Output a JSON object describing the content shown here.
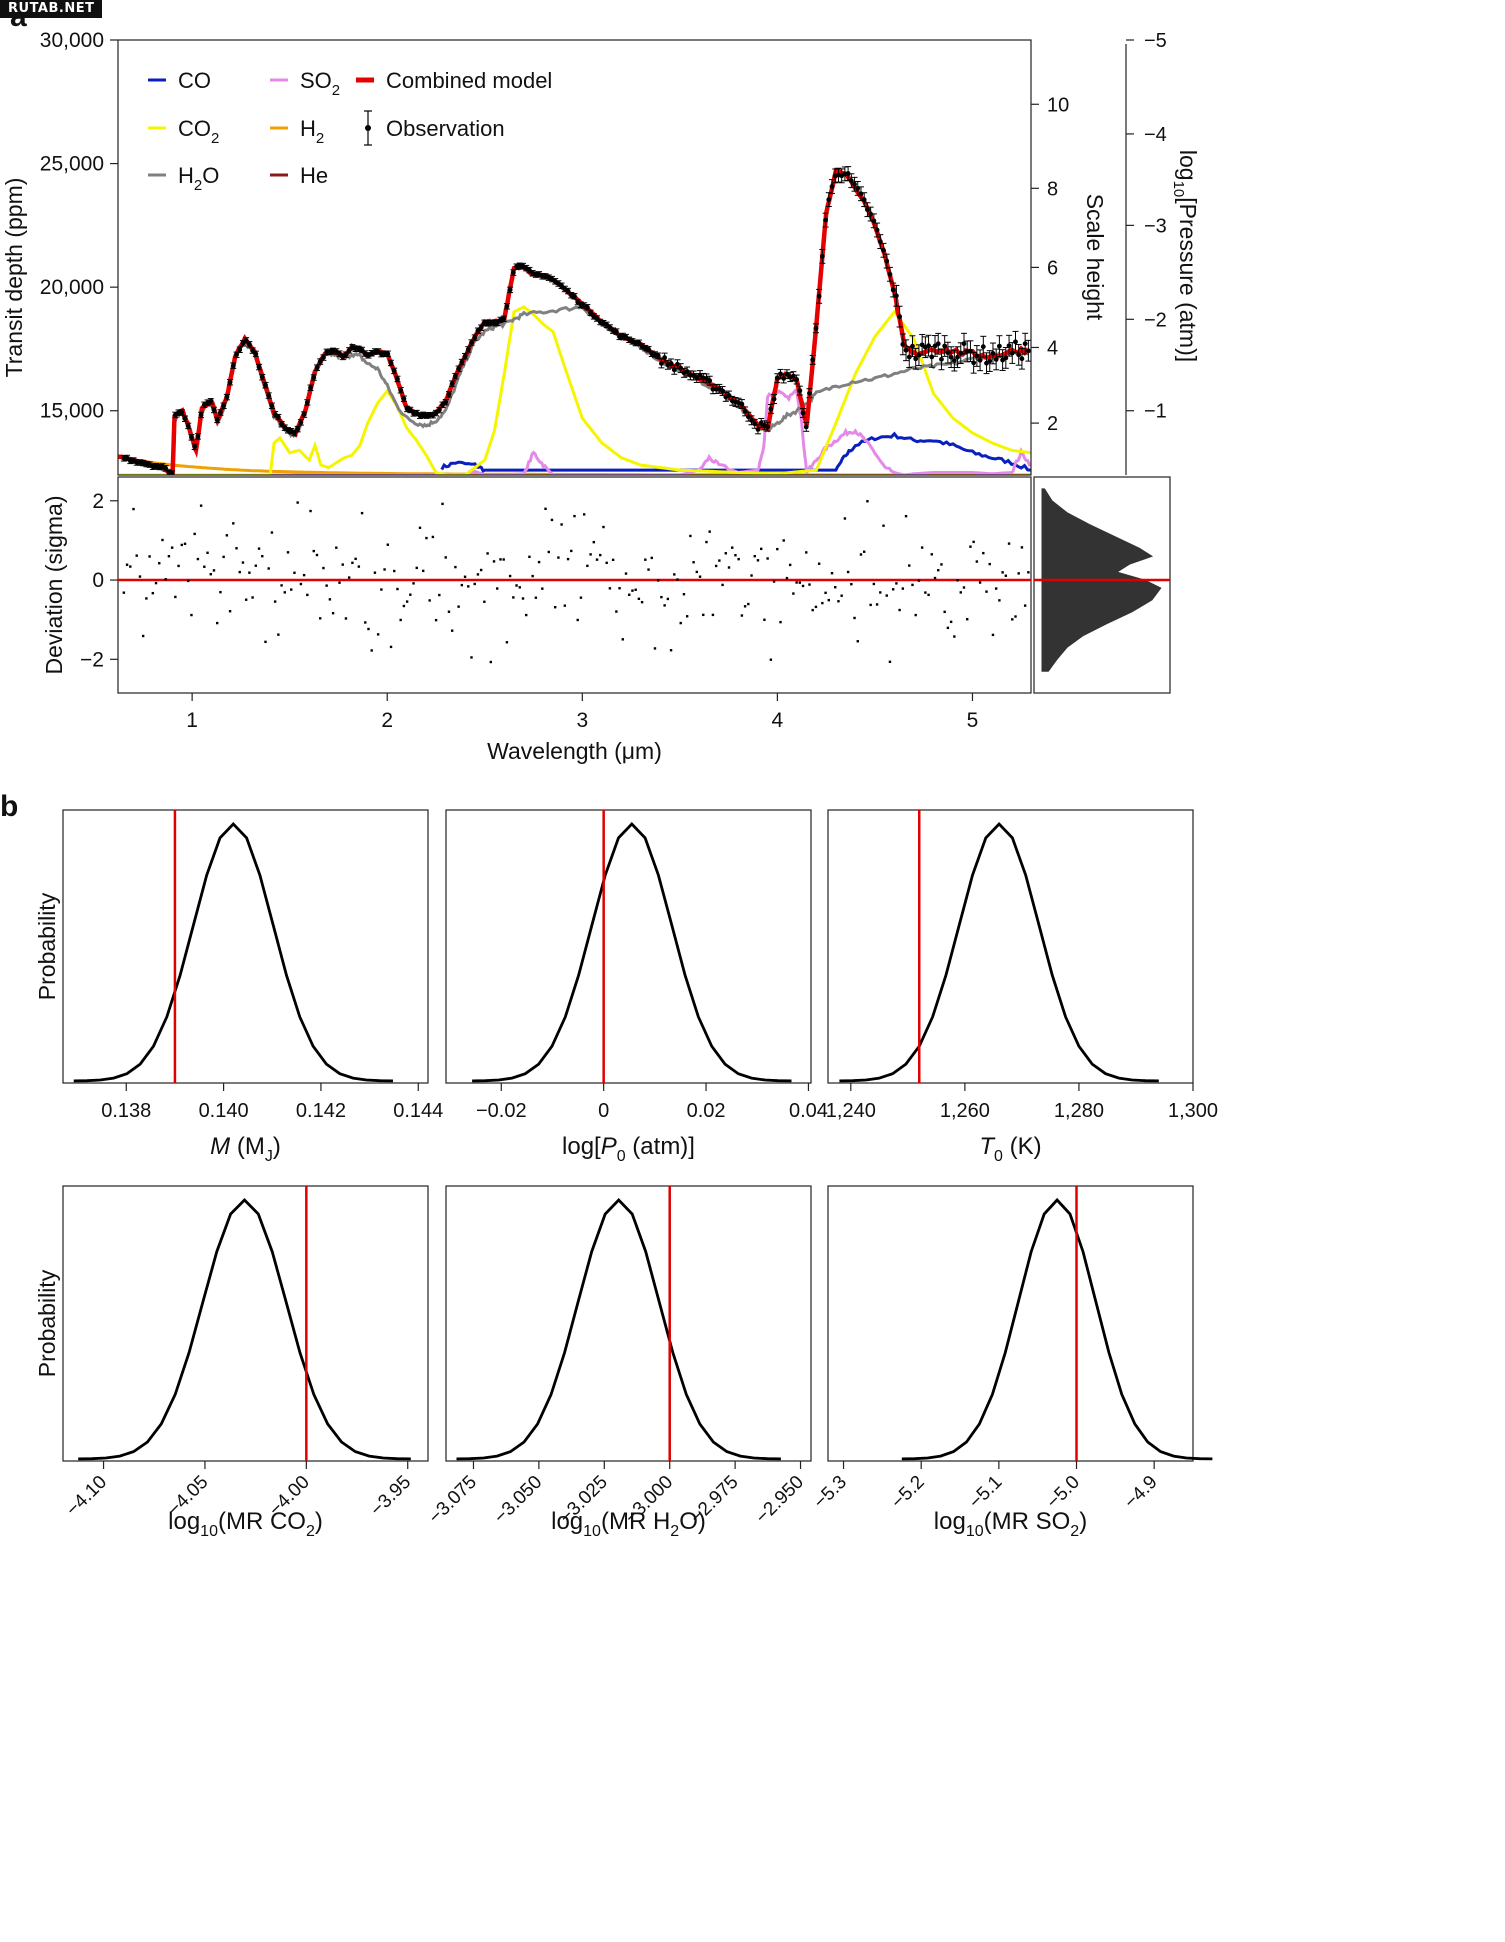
{
  "watermark": "RUTAB.NET",
  "colors": {
    "CO": "#0a1fbf",
    "CO2": "#f5f500",
    "H2O": "#808080",
    "SO2": "#e589e8",
    "H2": "#f0a000",
    "He": "#8b1a1a",
    "combined": "#e60000",
    "observation": "#000000",
    "vline": "#e00000",
    "hist": "#333333"
  },
  "chart_data": [
    {
      "panel": "a",
      "type": "line",
      "xlabel": "Wavelength (μm)",
      "ylabel": "Transit depth (ppm)",
      "right_label_1": "Scale height",
      "right_label_2": "log10[Pressure (atm)]",
      "xlim": [
        0.62,
        5.3
      ],
      "ylim": [
        12400,
        30000
      ],
      "x_ticks": [
        1,
        2,
        3,
        4,
        5
      ],
      "y_ticks": [
        {
          "v": 15000,
          "t": "15,000"
        },
        {
          "v": 20000,
          "t": "20,000"
        },
        {
          "v": 25000,
          "t": "25,000"
        },
        {
          "v": 30000,
          "t": "30,000"
        }
      ],
      "scale_height_ticks": [
        {
          "v": 2,
          "d": 14500
        },
        {
          "v": 4,
          "d": 17560
        },
        {
          "v": 6,
          "d": 20800
        },
        {
          "v": 8,
          "d": 24000
        },
        {
          "v": 10,
          "d": 27400
        }
      ],
      "pressure_ticks": [
        {
          "t": "−1",
          "d": 15000
        },
        {
          "t": "−2",
          "d": 18700
        },
        {
          "t": "−3",
          "d": 22500
        },
        {
          "t": "−4",
          "d": 26200
        },
        {
          "t": "−5",
          "d": 30000
        }
      ],
      "legend": [
        {
          "key": "CO",
          "label": "CO",
          "sub": ""
        },
        {
          "key": "SO2",
          "label": "SO",
          "sub": "2"
        },
        {
          "key": "combined",
          "label": "Combined model",
          "sub": ""
        },
        {
          "key": "CO2",
          "label": "CO",
          "sub": "2"
        },
        {
          "key": "H2",
          "label": "H",
          "sub": "2"
        },
        {
          "key": "observation",
          "label": "Observation",
          "sub": ""
        },
        {
          "key": "H2O",
          "label": "H",
          "sub": "2",
          "tail": "O"
        },
        {
          "key": "He",
          "label": "He",
          "sub": ""
        }
      ],
      "series": [
        {
          "name": "Combined model",
          "key": "combined",
          "x": [
            0.62,
            0.75,
            0.85,
            0.9,
            0.91,
            0.95,
            0.98,
            1.02,
            1.05,
            1.1,
            1.13,
            1.18,
            1.22,
            1.27,
            1.32,
            1.38,
            1.42,
            1.48,
            1.53,
            1.58,
            1.63,
            1.68,
            1.72,
            1.78,
            1.82,
            1.86,
            1.9,
            1.95,
            2.0,
            2.05,
            2.1,
            2.15,
            2.2,
            2.25,
            2.3,
            2.35,
            2.4,
            2.45,
            2.5,
            2.55,
            2.6,
            2.65,
            2.7,
            2.75,
            2.8,
            2.85,
            2.9,
            3.0,
            3.1,
            3.2,
            3.3,
            3.4,
            3.5,
            3.6,
            3.7,
            3.8,
            3.85,
            3.9,
            3.95,
            4.0,
            4.05,
            4.1,
            4.15,
            4.2,
            4.25,
            4.3,
            4.35,
            4.4,
            4.45,
            4.5,
            4.55,
            4.6,
            4.65,
            4.7,
            4.8,
            4.9,
            5.0,
            5.1,
            5.2,
            5.3
          ],
          "y": [
            13150,
            12900,
            12700,
            12450,
            14800,
            15000,
            14400,
            13400,
            15100,
            15400,
            14600,
            15600,
            17200,
            17900,
            17400,
            15900,
            14900,
            14300,
            14100,
            15000,
            16600,
            17300,
            17400,
            17200,
            17600,
            17500,
            17200,
            17400,
            17300,
            16300,
            15100,
            14900,
            14800,
            14900,
            15400,
            16400,
            17200,
            18000,
            18600,
            18600,
            18700,
            20800,
            20800,
            20500,
            20500,
            20300,
            20000,
            19300,
            18600,
            18000,
            17700,
            17100,
            16700,
            16300,
            15900,
            15300,
            14900,
            14400,
            14300,
            16300,
            16500,
            16200,
            14400,
            18500,
            23000,
            24700,
            24600,
            24000,
            23400,
            22500,
            21300,
            19800,
            17600,
            17300,
            17500,
            17400,
            17300,
            17200,
            17400,
            17500
          ]
        },
        {
          "name": "H2O",
          "key": "H2O",
          "x": [
            0.62,
            0.75,
            0.85,
            0.9,
            0.91,
            0.95,
            0.98,
            1.02,
            1.05,
            1.1,
            1.13,
            1.18,
            1.22,
            1.27,
            1.32,
            1.38,
            1.42,
            1.48,
            1.53,
            1.58,
            1.63,
            1.68,
            1.72,
            1.78,
            1.82,
            1.86,
            1.9,
            1.95,
            2.0,
            2.05,
            2.1,
            2.15,
            2.2,
            2.25,
            2.3,
            2.35,
            2.4,
            2.45,
            2.5,
            2.55,
            2.6,
            2.65,
            2.7,
            2.8,
            2.9,
            3.0,
            3.1,
            3.2,
            3.3,
            3.4,
            3.5,
            3.6,
            3.7,
            3.8,
            3.85,
            3.9,
            3.95,
            4.0,
            4.05,
            4.1,
            4.15,
            4.2,
            4.3,
            4.4,
            4.5,
            4.6,
            4.7,
            4.8,
            4.9,
            5.0,
            5.1,
            5.2,
            5.3
          ],
          "y": [
            13100,
            12900,
            12600,
            12450,
            14700,
            14900,
            14300,
            13300,
            15000,
            15300,
            14500,
            15500,
            17100,
            17800,
            17300,
            15800,
            14800,
            14200,
            14000,
            14900,
            16500,
            17200,
            17300,
            17100,
            17300,
            17200,
            16900,
            16700,
            16000,
            15200,
            14700,
            14500,
            14400,
            14600,
            15000,
            16000,
            17000,
            17800,
            18200,
            18400,
            18500,
            18700,
            18900,
            19000,
            19100,
            19200,
            18500,
            17900,
            17600,
            17000,
            16600,
            16200,
            15800,
            15200,
            14800,
            14400,
            14200,
            14500,
            14800,
            15000,
            15300,
            15700,
            16000,
            16200,
            16300,
            16500,
            16700,
            16800,
            16900,
            17100,
            17200,
            17300,
            17400
          ]
        },
        {
          "name": "CO2",
          "key": "CO2",
          "x": [
            0.62,
            1.4,
            1.42,
            1.45,
            1.5,
            1.55,
            1.6,
            1.63,
            1.66,
            1.7,
            1.74,
            1.78,
            1.82,
            1.86,
            1.9,
            1.95,
            2.0,
            2.05,
            2.1,
            2.15,
            2.2,
            2.25,
            2.3,
            2.4,
            2.5,
            2.55,
            2.6,
            2.65,
            2.7,
            2.75,
            2.8,
            2.85,
            2.9,
            3.0,
            3.1,
            3.2,
            3.3,
            3.5,
            3.8,
            4.0,
            4.2,
            4.3,
            4.4,
            4.5,
            4.6,
            4.7,
            4.8,
            4.9,
            5.0,
            5.1,
            5.2,
            5.3
          ],
          "y": [
            12400,
            12400,
            13700,
            13900,
            13300,
            13400,
            13000,
            13600,
            12800,
            12700,
            12900,
            13100,
            13200,
            13600,
            14500,
            15300,
            15800,
            15200,
            14300,
            13800,
            13200,
            12500,
            12400,
            12400,
            13000,
            14200,
            16500,
            19000,
            19200,
            18900,
            18500,
            18200,
            17000,
            14700,
            13700,
            13100,
            12800,
            12600,
            12500,
            12450,
            12600,
            14500,
            16500,
            18000,
            19000,
            17900,
            15700,
            14700,
            14100,
            13700,
            13400,
            13300
          ]
        },
        {
          "name": "SO2",
          "key": "SO2",
          "x": [
            0.62,
            2.4,
            2.45,
            2.5,
            2.55,
            2.7,
            2.75,
            2.8,
            2.85,
            3.0,
            3.5,
            3.6,
            3.65,
            3.7,
            3.8,
            3.9,
            3.93,
            3.95,
            4.0,
            4.05,
            4.1,
            4.12,
            4.15,
            4.2,
            4.25,
            4.3,
            4.35,
            4.4,
            4.45,
            4.5,
            4.55,
            4.6,
            4.65,
            4.7,
            4.8,
            4.9,
            5.0,
            5.1,
            5.2,
            5.25,
            5.3
          ],
          "y": [
            12400,
            12400,
            12550,
            12400,
            12400,
            12450,
            13300,
            12800,
            12400,
            12400,
            12400,
            12600,
            13100,
            12800,
            12500,
            12600,
            13500,
            15600,
            15800,
            15500,
            15800,
            14800,
            12500,
            13000,
            13500,
            13800,
            14100,
            14200,
            13800,
            13300,
            12700,
            12500,
            12400,
            12450,
            12500,
            12500,
            12500,
            12450,
            12500,
            13300,
            12800
          ]
        },
        {
          "name": "CO",
          "key": "CO",
          "x": [
            2.28,
            2.35,
            2.45,
            2.5,
            4.3,
            4.35,
            4.4,
            4.5,
            4.6,
            4.7,
            4.8,
            4.9,
            5.0,
            5.1,
            5.2,
            5.3
          ],
          "y": [
            12700,
            12900,
            12800,
            12600,
            12600,
            13200,
            13600,
            13900,
            14000,
            13800,
            13800,
            13600,
            13300,
            13100,
            12900,
            12600
          ]
        },
        {
          "name": "H2",
          "key": "H2",
          "x": [
            0.62,
            0.7,
            0.8,
            0.9,
            1.0,
            1.1,
            1.2,
            1.3,
            1.4,
            1.5,
            1.6,
            1.8,
            2.0,
            2.3,
            2.6,
            3.0,
            3.5,
            4.0,
            4.5,
            5.0,
            5.3
          ],
          "y": [
            13150,
            13000,
            12900,
            12800,
            12730,
            12670,
            12620,
            12580,
            12550,
            12530,
            12510,
            12480,
            12460,
            12440,
            12430,
            12420,
            12410,
            12405,
            12400,
            12400,
            12400
          ]
        },
        {
          "name": "He",
          "key": "He",
          "x": [
            0.62,
            5.3
          ],
          "y": [
            12400,
            12400
          ]
        }
      ],
      "observation_note": "dense set of points with error bars following the combined model from 0.62 to 5.3 μm"
    },
    {
      "panel": "a-residuals",
      "type": "scatter",
      "ylabel": "Deviation (sigma)",
      "xlim": [
        0.62,
        5.3
      ],
      "ylim": [
        -2.85,
        2.6
      ],
      "y_ticks": [
        -2,
        0,
        2
      ],
      "x_ticks": [
        1,
        2,
        3,
        4,
        5
      ],
      "zero_line": 0,
      "histogram": {
        "bins": [
          -2.3,
          -2.0,
          -1.7,
          -1.4,
          -1.1,
          -0.8,
          -0.5,
          -0.2,
          0.0,
          0.2,
          0.4,
          0.6,
          0.8,
          1.1,
          1.4,
          1.7,
          2.0,
          2.3
        ],
        "counts": [
          0.05,
          0.12,
          0.2,
          0.33,
          0.52,
          0.72,
          0.88,
          0.95,
          0.82,
          0.6,
          0.7,
          0.88,
          0.78,
          0.58,
          0.38,
          0.2,
          0.08,
          0.02
        ]
      }
    },
    {
      "panel": "b1",
      "type": "line",
      "xlabel": "M (M_J)",
      "xlabel_main": "M",
      "xlabel_paren": "(M",
      "xlabel_sub": "J",
      "xlabel_close": ")",
      "ylabel": "Probability",
      "xlim": [
        0.1367,
        0.1442
      ],
      "x_ticks": [
        {
          "v": 0.138,
          "t": "0.138"
        },
        {
          "v": 0.14,
          "t": "0.140"
        },
        {
          "v": 0.142,
          "t": "0.142"
        },
        {
          "v": 0.144,
          "t": "0.144"
        }
      ],
      "mean": 0.1402,
      "sd": 0.00082,
      "true_value": 0.139
    },
    {
      "panel": "b2",
      "type": "line",
      "xlabel": "log[P0 (atm)]",
      "xlabel_pre": "log[",
      "xlabel_main": "P",
      "xlabel_sub": "0",
      "xlabel_post": " (atm)]",
      "xlim": [
        -0.0308,
        0.0405
      ],
      "x_ticks": [
        {
          "v": -0.02,
          "t": "−0.02"
        },
        {
          "v": 0,
          "t": "0"
        },
        {
          "v": 0.02,
          "t": "0.02"
        },
        {
          "v": 0.04,
          "t": "0.04"
        }
      ],
      "mean": 0.0055,
      "sd": 0.0078,
      "true_value": 0
    },
    {
      "panel": "b3",
      "type": "line",
      "xlabel": "T0 (K)",
      "xlabel_main": "T",
      "xlabel_sub": "0",
      "xlabel_post": " (K)",
      "xlim": [
        1236,
        1300
      ],
      "x_ticks": [
        {
          "v": 1240,
          "t": "1,240"
        },
        {
          "v": 1260,
          "t": "1,260"
        },
        {
          "v": 1280,
          "t": "1,280"
        },
        {
          "v": 1300,
          "t": "1,300"
        }
      ],
      "mean": 1266,
      "sd": 7.0,
      "true_value": 1252
    },
    {
      "panel": "b4",
      "type": "line",
      "xlabel": "log10(MR CO2)",
      "xlabel_pre": "log",
      "xlabel_sub1": "10",
      "xlabel_mid": "(MR CO",
      "xlabel_sub2": "2",
      "xlabel_post": ")",
      "ylabel": "Probability",
      "xlim": [
        -4.12,
        -3.94
      ],
      "x_ticks": [
        {
          "v": -4.1,
          "t": "−4.10"
        },
        {
          "v": -4.05,
          "t": "−4.05"
        },
        {
          "v": -4.0,
          "t": "−4.00"
        },
        {
          "v": -3.95,
          "t": "−3.95"
        }
      ],
      "mean": -4.0305,
      "sd": 0.0205,
      "true_value": -4.0
    },
    {
      "panel": "b5",
      "type": "line",
      "xlabel": "log10(MR H2O)",
      "xlabel_pre": "log",
      "xlabel_sub1": "10",
      "xlabel_mid": "(MR H",
      "xlabel_sub2": "2",
      "xlabel_post": "O)",
      "xlim": [
        -3.0855,
        -2.946
      ],
      "x_ticks": [
        {
          "v": -3.075,
          "t": "−3.075"
        },
        {
          "v": -3.05,
          "t": "−3.050"
        },
        {
          "v": -3.025,
          "t": "−3.025"
        },
        {
          "v": -3.0,
          "t": "−3.000"
        },
        {
          "v": -2.975,
          "t": "−2.975"
        },
        {
          "v": -2.95,
          "t": "−2.950"
        }
      ],
      "mean": -3.0195,
      "sd": 0.0155,
      "true_value": -3.0
    },
    {
      "panel": "b6",
      "type": "line",
      "xlabel": "log10(MR SO2)",
      "xlabel_pre": "log",
      "xlabel_sub1": "10",
      "xlabel_mid": "(MR SO",
      "xlabel_sub2": "2",
      "xlabel_post": ")",
      "xlim": [
        -5.32,
        -4.85
      ],
      "x_ticks": [
        {
          "v": -5.3,
          "t": "−5.3"
        },
        {
          "v": -5.2,
          "t": "−5.2"
        },
        {
          "v": -5.1,
          "t": "−5.1"
        },
        {
          "v": -5.0,
          "t": "−5.0"
        },
        {
          "v": -4.9,
          "t": "−4.9"
        }
      ],
      "mean": -5.025,
      "sd": 0.05,
      "true_value": -5.0
    }
  ],
  "panel_labels": {
    "a": "a",
    "b": "b"
  }
}
